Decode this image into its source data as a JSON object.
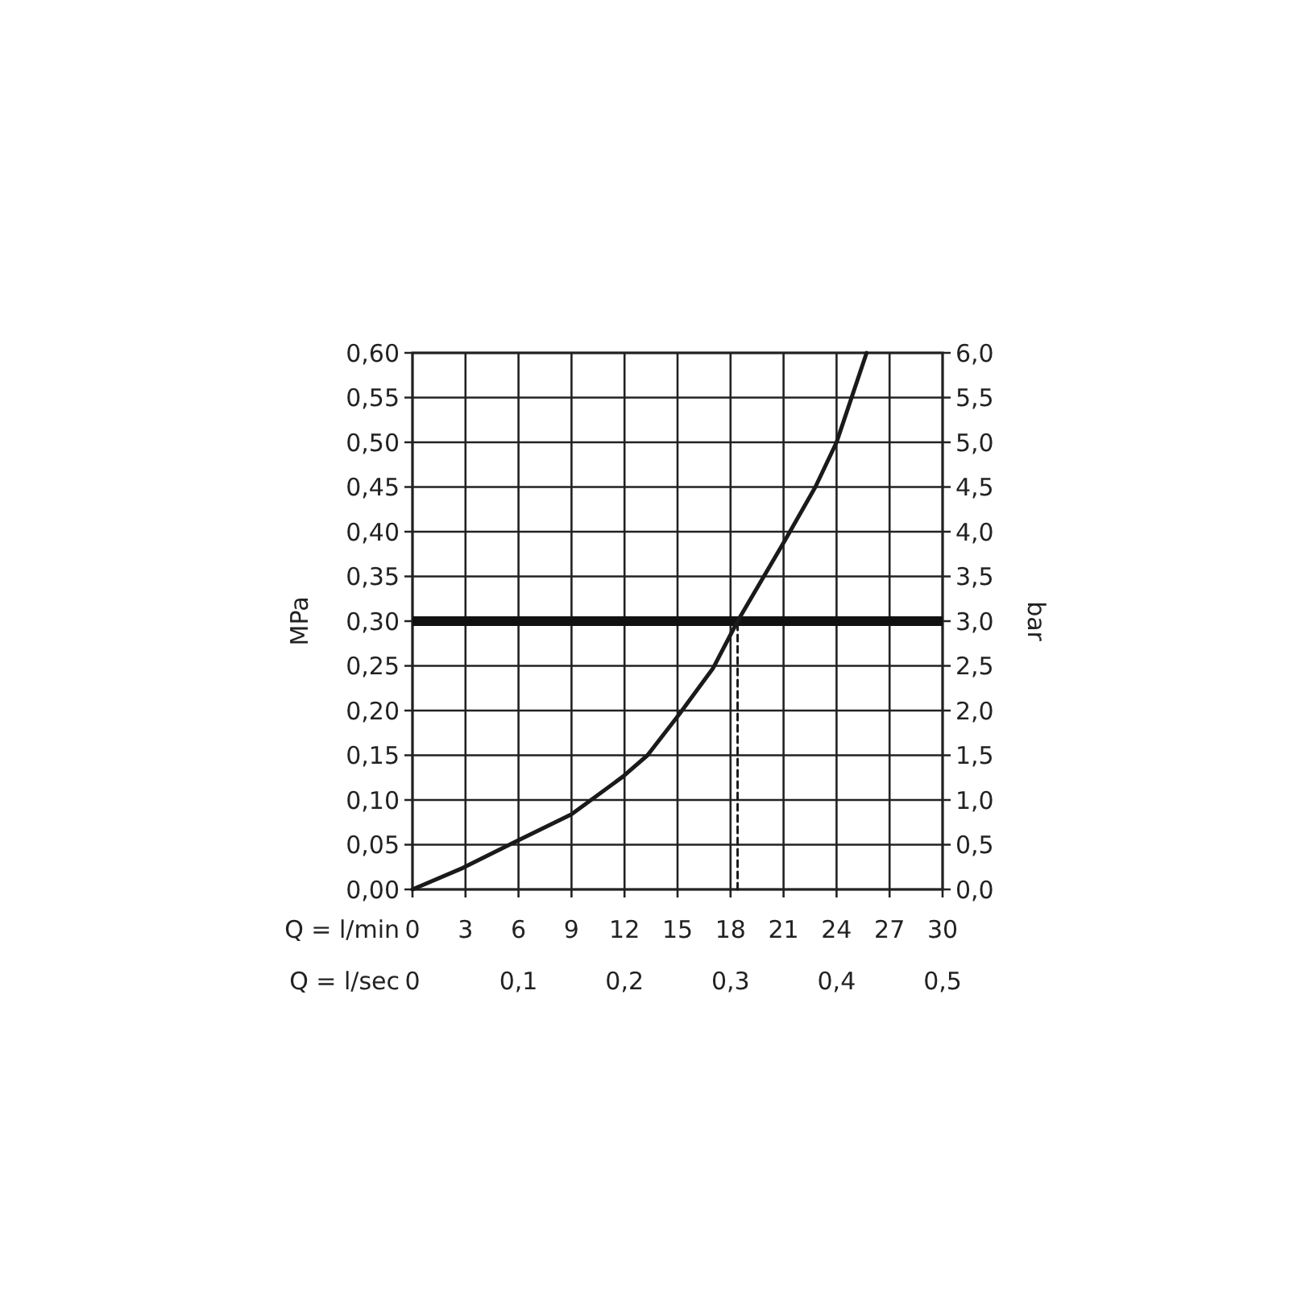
{
  "chart_data": {
    "type": "line",
    "xlabel": "Q = l/min",
    "x2label": "Q = l/sec",
    "ylabel": "MPa",
    "y2label": "bar",
    "xlim": [
      0,
      30
    ],
    "xticks": [
      0,
      3,
      6,
      9,
      12,
      15,
      18,
      21,
      24,
      27,
      30
    ],
    "x2lim": [
      0,
      0.5
    ],
    "x2ticks": [
      0,
      {
        "value": 0.1,
        "label": "0,1"
      },
      {
        "value": 0.2,
        "label": "0,2"
      },
      {
        "value": 0.3,
        "label": "0,3"
      },
      {
        "value": 0.4,
        "label": "0,4"
      },
      {
        "value": 0.5,
        "label": "0,5"
      }
    ],
    "ylim": [
      0,
      0.6
    ],
    "yticks": [
      {
        "value": 0,
        "label": "0,00"
      },
      {
        "value": 0.05,
        "label": "0,05"
      },
      {
        "value": 0.1,
        "label": "0,10"
      },
      {
        "value": 0.15,
        "label": "0,15"
      },
      {
        "value": 0.2,
        "label": "0,20"
      },
      {
        "value": 0.25,
        "label": "0,25"
      },
      {
        "value": 0.3,
        "label": "0,30"
      },
      {
        "value": 0.35,
        "label": "0,35"
      },
      {
        "value": 0.4,
        "label": "0,40"
      },
      {
        "value": 0.45,
        "label": "0,45"
      },
      {
        "value": 0.5,
        "label": "0,50"
      },
      {
        "value": 0.55,
        "label": "0,55"
      },
      {
        "value": 0.6,
        "label": "0,60"
      }
    ],
    "y2lim": [
      0,
      6
    ],
    "y2ticks": [
      {
        "value": 0,
        "label": "0,0"
      },
      {
        "value": 0.5,
        "label": "0,5"
      },
      {
        "value": 1,
        "label": "1,0"
      },
      {
        "value": 1.5,
        "label": "1,5"
      },
      {
        "value": 2,
        "label": "2,0"
      },
      {
        "value": 2.5,
        "label": "2,5"
      },
      {
        "value": 3,
        "label": "3,0"
      },
      {
        "value": 3.5,
        "label": "3,5"
      },
      {
        "value": 4,
        "label": "4,0"
      },
      {
        "value": 4.5,
        "label": "4,5"
      },
      {
        "value": 5,
        "label": "5,0"
      },
      {
        "value": 5.5,
        "label": "5,5"
      },
      {
        "value": 6,
        "label": "6,0"
      }
    ],
    "grid": true,
    "series": [
      {
        "color": "#1a1a1a",
        "line_style": "solid",
        "x": [
          0,
          2.85,
          5.9,
          9,
          11.9,
          13.3,
          15.1,
          17,
          18.4,
          21.1,
          22.8,
          24,
          25.7
        ],
        "values": [
          0,
          0.024,
          0.054,
          0.084,
          0.126,
          0.15,
          0.196,
          0.247,
          0.3,
          0.391,
          0.45,
          0.5,
          0.6
        ]
      },
      {
        "color": "#1a1a1a",
        "line_style": "dashed",
        "x": [
          18.4,
          18.4
        ],
        "values": [
          0,
          0.3
        ]
      }
    ],
    "ref_lines": [
      {
        "axis": "y",
        "value": 0.3,
        "color": "#111111"
      }
    ]
  }
}
